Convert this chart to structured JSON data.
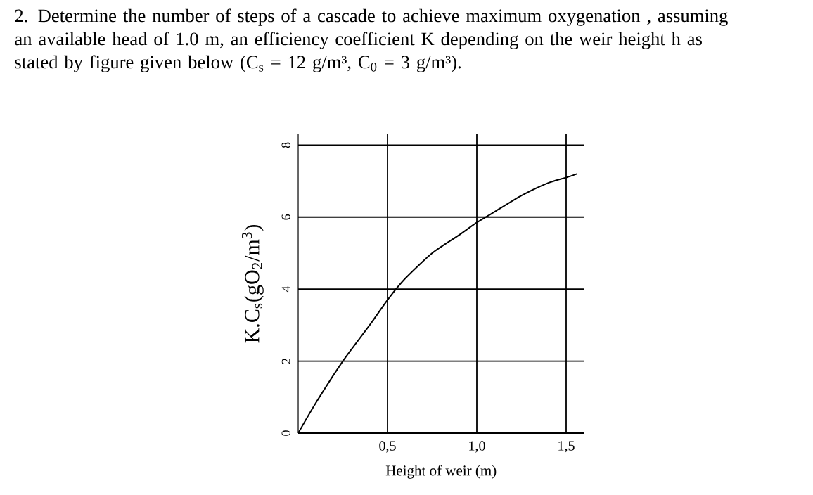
{
  "chart_data": {
    "type": "line",
    "title": "2. Determine the number of steps of a cascade to achieve maximum oxygenation , assuming an available head of 1.0 m, an efficiency coefficient K depending on the weir height h as stated by figure given below (C$_{s}$ = 12 g/m³, C$_{0}$ = 3 g/m³).",
    "xlabel": "Height of weir (m)",
    "ylabel": "K.C$_{s}$(gO$_{2}$/m$^{3}$)",
    "x": [
      0,
      0.1,
      0.25,
      0.4,
      0.5,
      0.6,
      0.75,
      0.9,
      1.0,
      1.1,
      1.25,
      1.4,
      1.5,
      1.56
    ],
    "series": [
      {
        "color": "#000000",
        "values": [
          0,
          0.85,
          2.0,
          3.0,
          3.7,
          4.3,
          5.0,
          5.5,
          5.85,
          6.15,
          6.6,
          6.95,
          7.1,
          7.2
        ]
      }
    ],
    "xlim": [
      0,
      1.6
    ],
    "ylim": [
      0,
      8.3
    ],
    "xticks": [
      {
        "value": 0.5,
        "label": "0,5"
      },
      {
        "value": 1.0,
        "label": "1,0"
      },
      {
        "value": 1.5,
        "label": "1,5"
      }
    ],
    "yticks": [
      0,
      2,
      4,
      6,
      8
    ],
    "grid": true,
    "marker": "none",
    "line_style": "solid"
  }
}
